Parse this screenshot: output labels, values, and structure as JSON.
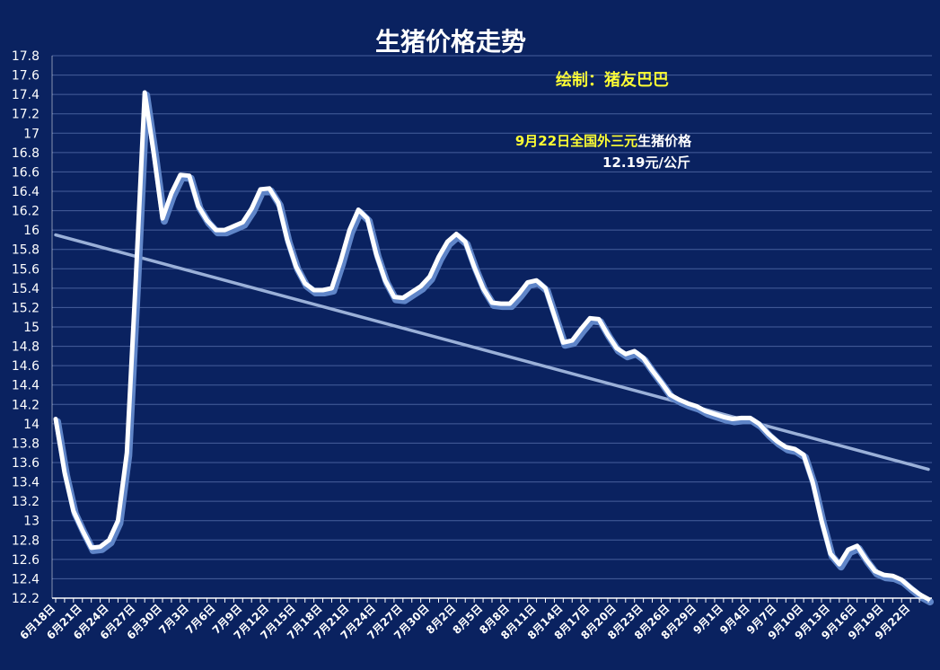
{
  "chart_data": {
    "type": "line",
    "title": "生猪价格走势",
    "credit": "绘制：猪友巴巴",
    "annotation": {
      "line1_date": "9月22日全国外三元",
      "line1_rest": "生猪价格",
      "line2": "12.19元/公斤"
    },
    "ylim": [
      12.2,
      17.8
    ],
    "ytick_step": 0.2,
    "ytick_labels": [
      "12.2",
      "12.4",
      "12.6",
      "12.8",
      "13",
      "13.2",
      "13.4",
      "13.6",
      "13.8",
      "14",
      "14.2",
      "14.4",
      "14.6",
      "14.8",
      "15",
      "15.2",
      "15.4",
      "15.6",
      "15.8",
      "16",
      "16.2",
      "16.4",
      "16.6",
      "16.8",
      "17",
      "17.2",
      "17.4",
      "17.6",
      "17.8"
    ],
    "x_labels": [
      "6月18日",
      "6月21日",
      "6月24日",
      "6月27日",
      "6月30日",
      "7月3日",
      "7月6日",
      "7月9日",
      "7月12日",
      "7月15日",
      "7月18日",
      "7月21日",
      "7月24日",
      "7月27日",
      "7月30日",
      "8月2日",
      "8月5日",
      "8月8日",
      "8月11日",
      "8月14日",
      "8月17日",
      "8月20日",
      "8月23日",
      "8月26日",
      "8月29日",
      "9月1日",
      "9月4日",
      "9月7日",
      "9月10日",
      "9月13日",
      "9月16日",
      "9月19日",
      "9月22日"
    ],
    "label_every": 3,
    "series": [
      {
        "values": [
          14.05,
          13.5,
          13.1,
          12.9,
          12.72,
          12.73,
          12.8,
          13.0,
          13.7,
          15.5,
          17.42,
          16.8,
          16.12,
          16.38,
          16.57,
          16.56,
          16.25,
          16.1,
          16.0,
          16.0,
          16.04,
          16.08,
          16.22,
          16.42,
          16.43,
          16.28,
          15.9,
          15.62,
          15.45,
          15.38,
          15.38,
          15.4,
          15.68,
          16.0,
          16.21,
          16.12,
          15.75,
          15.48,
          15.31,
          15.3,
          15.36,
          15.42,
          15.52,
          15.72,
          15.88,
          15.96,
          15.88,
          15.62,
          15.4,
          15.25,
          15.24,
          15.24,
          15.34,
          15.46,
          15.48,
          15.4,
          15.12,
          14.84,
          14.86,
          14.98,
          15.09,
          15.08,
          14.92,
          14.78,
          14.72,
          14.75,
          14.68,
          14.55,
          14.43,
          14.3,
          14.25,
          14.21,
          14.18,
          14.13,
          14.1,
          14.07,
          14.05,
          14.06,
          14.06,
          14.0,
          13.9,
          13.82,
          13.76,
          13.74,
          13.68,
          13.4,
          13.0,
          12.66,
          12.55,
          12.7,
          12.74,
          12.6,
          12.48,
          12.44,
          12.43,
          12.39,
          12.31,
          12.24,
          12.19
        ],
        "color": "#ffffff"
      },
      {
        "type": "trendline",
        "values_endpoints": [
          15.95,
          13.53
        ],
        "color": "#9ab0d8"
      }
    ],
    "grid": true
  }
}
